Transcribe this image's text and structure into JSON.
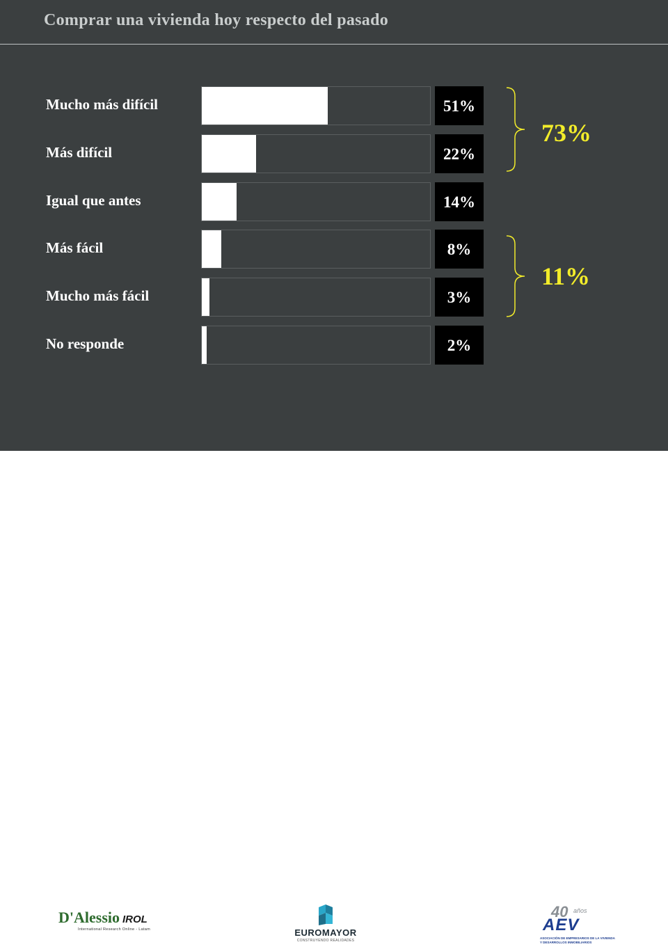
{
  "title": "Comprar una vivienda hoy respecto del pasado",
  "colors": {
    "background": "#3b3f40",
    "bar": "#ffffff",
    "value_box": "#000000",
    "highlight": "#f2ec2a"
  },
  "chart_data": {
    "type": "bar",
    "orientation": "horizontal",
    "title": "Comprar una vivienda hoy respecto del pasado",
    "categories": [
      "Mucho más difícil",
      "Más difícil",
      "Igual que antes",
      "Más fácil",
      "Mucho más fácil",
      "No responde"
    ],
    "values": [
      51,
      22,
      14,
      8,
      3,
      2
    ],
    "value_labels": [
      "51%",
      "22%",
      "14%",
      "8%",
      "3%",
      "2%"
    ],
    "groups": [
      {
        "label": "73%",
        "categories": [
          "Mucho más difícil",
          "Más difícil"
        ]
      },
      {
        "label": "11%",
        "categories": [
          "Más fácil",
          "Mucho más fácil"
        ]
      }
    ],
    "grid": false,
    "legend": "none"
  },
  "footer": {
    "logo_left": {
      "main": "D'Alessio",
      "accent": "IROL",
      "tagline": "International Research Online - Latam"
    },
    "logo_center": {
      "name": "EUROMAYOR",
      "tagline": "CONSTRUYENDO REALIDADES"
    },
    "logo_right": {
      "years_number": "40",
      "years_word": "años",
      "name": "AEV",
      "tagline_1": "ASOCIACIÓN DE EMPRESARIOS DE LA VIVIENDA",
      "tagline_2": "Y DESARROLLOS INMOBILIARIOS"
    }
  }
}
